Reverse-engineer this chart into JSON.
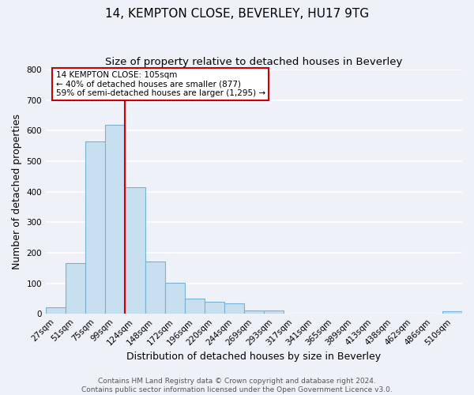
{
  "title": "14, KEMPTON CLOSE, BEVERLEY, HU17 9TG",
  "subtitle": "Size of property relative to detached houses in Beverley",
  "xlabel": "Distribution of detached houses by size in Beverley",
  "ylabel": "Number of detached properties",
  "bin_labels": [
    "27sqm",
    "51sqm",
    "75sqm",
    "99sqm",
    "124sqm",
    "148sqm",
    "172sqm",
    "196sqm",
    "220sqm",
    "244sqm",
    "269sqm",
    "293sqm",
    "317sqm",
    "341sqm",
    "365sqm",
    "389sqm",
    "413sqm",
    "438sqm",
    "462sqm",
    "486sqm",
    "510sqm"
  ],
  "bar_heights": [
    20,
    165,
    565,
    620,
    415,
    172,
    102,
    50,
    40,
    33,
    12,
    10,
    0,
    0,
    0,
    0,
    0,
    0,
    0,
    0,
    8
  ],
  "bar_color": "#c8dff0",
  "bar_edge_color": "#7ab0d4",
  "vline_x_index": 4,
  "vline_color": "#cc0000",
  "annotation_text": "14 KEMPTON CLOSE: 105sqm\n← 40% of detached houses are smaller (877)\n59% of semi-detached houses are larger (1,295) →",
  "annotation_box_color": "#ffffff",
  "annotation_box_edge": "#cc0000",
  "ylim": [
    0,
    800
  ],
  "yticks": [
    0,
    100,
    200,
    300,
    400,
    500,
    600,
    700,
    800
  ],
  "footer_line1": "Contains HM Land Registry data © Crown copyright and database right 2024.",
  "footer_line2": "Contains public sector information licensed under the Open Government Licence v3.0.",
  "background_color": "#eef2f8",
  "grid_color": "#ffffff",
  "title_fontsize": 11,
  "subtitle_fontsize": 9.5,
  "axis_label_fontsize": 9,
  "tick_fontsize": 7.5,
  "annotation_fontsize": 7.5,
  "footer_fontsize": 6.5
}
